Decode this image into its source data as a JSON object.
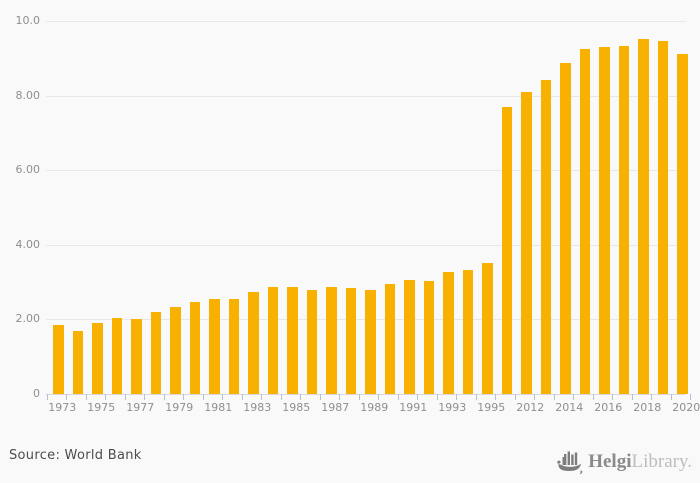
{
  "chart_data": {
    "type": "bar",
    "title": "",
    "xlabel": "",
    "ylabel": "",
    "categories": [
      "1973",
      "1974",
      "1975",
      "1976",
      "1977",
      "1978",
      "1979",
      "1980",
      "1981",
      "1982",
      "1983",
      "1984",
      "1985",
      "1986",
      "1987",
      "1988",
      "1989",
      "1990",
      "1991",
      "1992",
      "1993",
      "1994",
      "1995",
      "2011",
      "2012",
      "2013",
      "2014",
      "2015",
      "2016",
      "2017",
      "2018",
      "2019",
      "2020"
    ],
    "values": [
      1.86,
      1.7,
      1.9,
      2.03,
      2.0,
      2.2,
      2.32,
      2.46,
      2.56,
      2.54,
      2.73,
      2.88,
      2.86,
      2.8,
      2.86,
      2.83,
      2.8,
      2.95,
      3.05,
      3.04,
      3.28,
      3.33,
      3.5,
      7.7,
      8.1,
      8.41,
      8.88,
      9.24,
      9.3,
      9.34,
      9.53,
      9.47,
      9.12
    ],
    "ylim": [
      0,
      10
    ],
    "yticks": [
      {
        "value": 0,
        "label": "0"
      },
      {
        "value": 2,
        "label": "2.00"
      },
      {
        "value": 4,
        "label": "4.00"
      },
      {
        "value": 6,
        "label": "6.00"
      },
      {
        "value": 8,
        "label": "8.00"
      },
      {
        "value": 10,
        "label": "10.0"
      }
    ],
    "xticks": [
      {
        "index": 0,
        "label": "1973"
      },
      {
        "index": 2,
        "label": "1975"
      },
      {
        "index": 4,
        "label": "1977"
      },
      {
        "index": 6,
        "label": "1979"
      },
      {
        "index": 8,
        "label": "1981"
      },
      {
        "index": 10,
        "label": "1983"
      },
      {
        "index": 12,
        "label": "1985"
      },
      {
        "index": 14,
        "label": "1987"
      },
      {
        "index": 16,
        "label": "1989"
      },
      {
        "index": 18,
        "label": "1991"
      },
      {
        "index": 20,
        "label": "1993"
      },
      {
        "index": 22,
        "label": "1995"
      },
      {
        "index": 24,
        "label": "2012"
      },
      {
        "index": 26,
        "label": "2014"
      },
      {
        "index": 28,
        "label": "2016"
      },
      {
        "index": 30,
        "label": "2018"
      },
      {
        "index": 32,
        "label": "2020"
      }
    ],
    "grid": true,
    "legend_position": "none",
    "bar_color": "#f9b101"
  },
  "footer": {
    "source": "Source: World Bank"
  },
  "logo": {
    "brand_bold": "Helgi",
    "brand_light": "Library.",
    "icon": "helgi-ship-icon"
  },
  "colors": {
    "background": "#f9f9f9",
    "bar": "#f9b101",
    "gridline": "#e7e7e7",
    "baseline": "#d9d9d9",
    "tick": "#b7c1d6",
    "axis_text": "#8f8f8f",
    "source_text": "#4d4d4d",
    "logo_bold": "#8a8a8a",
    "logo_light": "#bdbdbd"
  }
}
